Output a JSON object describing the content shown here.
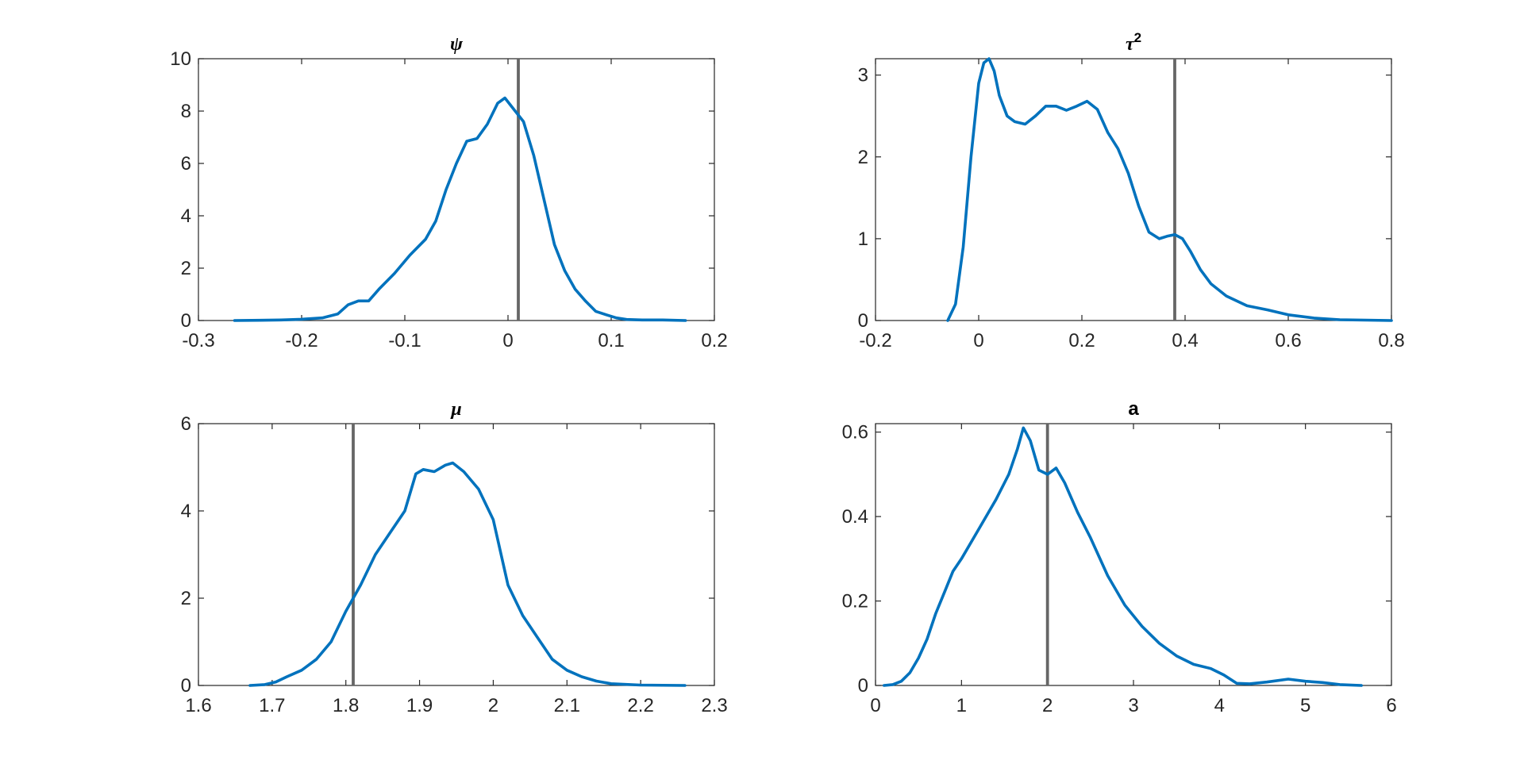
{
  "colors": {
    "curve": "#0072BD",
    "marker": "#666666",
    "axis": "#262626"
  },
  "chart_data": [
    {
      "type": "line",
      "title": "ψ",
      "xlim": [
        -0.3,
        0.2
      ],
      "ylim": [
        0,
        10
      ],
      "xticks": [
        -0.3,
        -0.2,
        -0.1,
        0,
        0.1,
        0.2
      ],
      "xtick_labels": [
        "-0.3",
        "-0.2",
        "-0.1",
        "0",
        "0.1",
        "0.2"
      ],
      "yticks": [
        0,
        2,
        4,
        6,
        8,
        10
      ],
      "ytick_labels": [
        "0",
        "2",
        "4",
        "6",
        "8",
        "10"
      ],
      "vline": 0.01,
      "series": [
        {
          "x": [
            -0.265,
            -0.24,
            -0.22,
            -0.2,
            -0.18,
            -0.165,
            -0.155,
            -0.145,
            -0.135,
            -0.125,
            -0.11,
            -0.095,
            -0.08,
            -0.07,
            -0.06,
            -0.05,
            -0.04,
            -0.03,
            -0.02,
            -0.01,
            -0.003,
            0.005,
            0.015,
            0.025,
            0.035,
            0.045,
            0.055,
            0.065,
            0.075,
            0.085,
            0.095,
            0.105,
            0.115,
            0.13,
            0.15,
            0.172
          ],
          "y": [
            0,
            0.01,
            0.02,
            0.05,
            0.1,
            0.25,
            0.6,
            0.75,
            0.75,
            1.2,
            1.8,
            2.5,
            3.1,
            3.8,
            5.0,
            6.0,
            6.85,
            6.95,
            7.5,
            8.3,
            8.5,
            8.1,
            7.6,
            6.3,
            4.6,
            2.9,
            1.9,
            1.2,
            0.75,
            0.35,
            0.22,
            0.1,
            0.04,
            0.02,
            0.02,
            0
          ]
        }
      ]
    },
    {
      "type": "line",
      "title": "τ",
      "title_superscript": "2",
      "xlim": [
        -0.2,
        0.8
      ],
      "ylim": [
        0,
        3.2
      ],
      "xticks": [
        -0.2,
        0,
        0.2,
        0.4,
        0.6,
        0.8
      ],
      "xtick_labels": [
        "-0.2",
        "0",
        "0.2",
        "0.4",
        "0.6",
        "0.8"
      ],
      "yticks": [
        0,
        1,
        2,
        3
      ],
      "ytick_labels": [
        "0",
        "1",
        "2",
        "3"
      ],
      "vline": 0.38,
      "series": [
        {
          "x": [
            -0.06,
            -0.045,
            -0.03,
            -0.015,
            0,
            0.01,
            0.02,
            0.03,
            0.04,
            0.055,
            0.07,
            0.09,
            0.11,
            0.13,
            0.15,
            0.17,
            0.19,
            0.21,
            0.23,
            0.25,
            0.27,
            0.29,
            0.31,
            0.33,
            0.35,
            0.365,
            0.38,
            0.395,
            0.41,
            0.43,
            0.45,
            0.48,
            0.52,
            0.56,
            0.6,
            0.65,
            0.7,
            0.75,
            0.8
          ],
          "y": [
            0,
            0.2,
            0.9,
            2.0,
            2.9,
            3.15,
            3.2,
            3.05,
            2.75,
            2.5,
            2.43,
            2.4,
            2.5,
            2.62,
            2.62,
            2.57,
            2.62,
            2.68,
            2.58,
            2.3,
            2.1,
            1.8,
            1.4,
            1.08,
            1.0,
            1.03,
            1.05,
            1.0,
            0.85,
            0.62,
            0.45,
            0.3,
            0.18,
            0.13,
            0.07,
            0.03,
            0.01,
            0.005,
            0
          ]
        }
      ]
    },
    {
      "type": "line",
      "title": "μ",
      "xlim": [
        1.6,
        2.3
      ],
      "ylim": [
        0,
        6
      ],
      "xticks": [
        1.6,
        1.7,
        1.8,
        1.9,
        2.0,
        2.1,
        2.2,
        2.3
      ],
      "xtick_labels": [
        "1.6",
        "1.7",
        "1.8",
        "1.9",
        "2",
        "2.1",
        "2.2",
        "2.3"
      ],
      "yticks": [
        0,
        2,
        4,
        6
      ],
      "ytick_labels": [
        "0",
        "2",
        "4",
        "6"
      ],
      "vline": 1.81,
      "series": [
        {
          "x": [
            1.67,
            1.69,
            1.705,
            1.72,
            1.74,
            1.76,
            1.78,
            1.8,
            1.82,
            1.84,
            1.86,
            1.88,
            1.895,
            1.905,
            1.92,
            1.935,
            1.945,
            1.96,
            1.98,
            2.0,
            2.02,
            2.04,
            2.06,
            2.08,
            2.1,
            2.12,
            2.14,
            2.16,
            2.2,
            2.26
          ],
          "y": [
            0,
            0.02,
            0.08,
            0.2,
            0.35,
            0.6,
            1.0,
            1.7,
            2.3,
            3.0,
            3.5,
            4.0,
            4.85,
            4.95,
            4.9,
            5.05,
            5.1,
            4.9,
            4.5,
            3.8,
            2.3,
            1.6,
            1.1,
            0.6,
            0.35,
            0.2,
            0.1,
            0.04,
            0.01,
            0
          ]
        }
      ]
    },
    {
      "type": "line",
      "title": "a",
      "xlim": [
        0,
        6
      ],
      "ylim": [
        0,
        0.62
      ],
      "xticks": [
        0,
        1,
        2,
        3,
        4,
        5,
        6
      ],
      "xtick_labels": [
        "0",
        "1",
        "2",
        "3",
        "4",
        "5",
        "6"
      ],
      "yticks": [
        0,
        0.2,
        0.4,
        0.6
      ],
      "ytick_labels": [
        "0",
        "0.2",
        "0.4",
        "0.6"
      ],
      "vline": 2.0,
      "series": [
        {
          "x": [
            0.1,
            0.2,
            0.3,
            0.4,
            0.5,
            0.6,
            0.7,
            0.8,
            0.9,
            1.0,
            1.2,
            1.4,
            1.55,
            1.65,
            1.72,
            1.8,
            1.9,
            2.0,
            2.1,
            2.2,
            2.35,
            2.5,
            2.7,
            2.9,
            3.1,
            3.3,
            3.5,
            3.7,
            3.9,
            4.05,
            4.2,
            4.35,
            4.55,
            4.8,
            5.0,
            5.2,
            5.4,
            5.65
          ],
          "y": [
            0,
            0.002,
            0.01,
            0.03,
            0.065,
            0.11,
            0.17,
            0.22,
            0.27,
            0.3,
            0.37,
            0.44,
            0.5,
            0.56,
            0.61,
            0.58,
            0.51,
            0.5,
            0.515,
            0.48,
            0.41,
            0.35,
            0.26,
            0.19,
            0.14,
            0.1,
            0.07,
            0.05,
            0.04,
            0.025,
            0.005,
            0.004,
            0.008,
            0.015,
            0.01,
            0.007,
            0.002,
            0
          ]
        }
      ]
    }
  ]
}
